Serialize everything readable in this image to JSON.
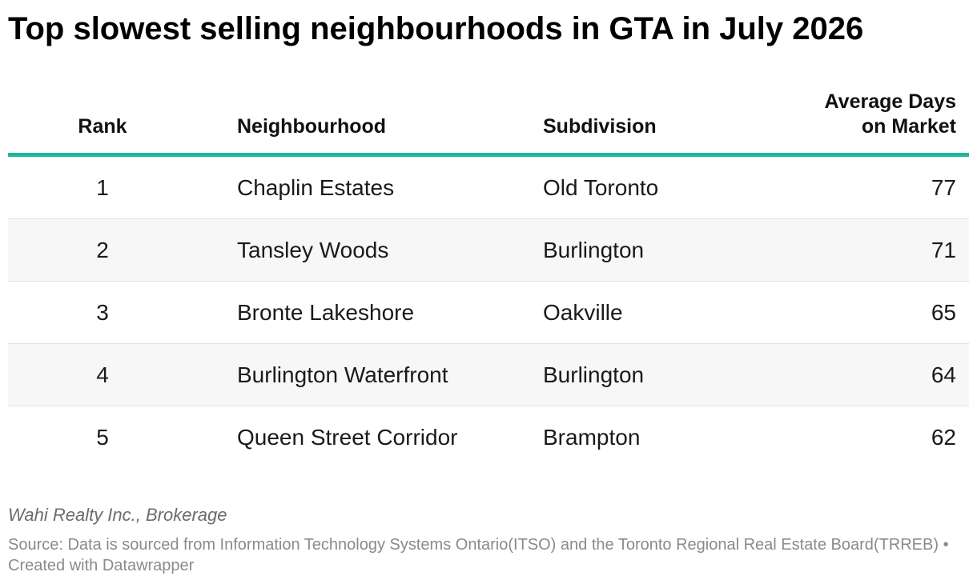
{
  "chart_data": {
    "type": "table",
    "title": "Top slowest selling neighbourhoods in GTA in July 2026",
    "columns": {
      "rank": "Rank",
      "neighbourhood": "Neighbourhood",
      "subdivision": "Subdivision",
      "days_line1": "Average Days",
      "days_line2": "on Market"
    },
    "rows": [
      {
        "rank": "1",
        "neighbourhood": "Chaplin Estates",
        "subdivision": "Old Toronto",
        "days": "77"
      },
      {
        "rank": "2",
        "neighbourhood": "Tansley Woods",
        "subdivision": "Burlington",
        "days": "71"
      },
      {
        "rank": "3",
        "neighbourhood": "Bronte Lakeshore",
        "subdivision": "Oakville",
        "days": "65"
      },
      {
        "rank": "4",
        "neighbourhood": "Burlington Waterfront",
        "subdivision": "Burlington",
        "days": "64"
      },
      {
        "rank": "5",
        "neighbourhood": "Queen Street Corridor",
        "subdivision": "Brampton",
        "days": "62"
      }
    ],
    "notes": "Wahi Realty Inc., Brokerage",
    "source": "Source: Data is sourced from Information Technology Systems Ontario(ITSO) and the Toronto Regional Real Estate Board(TRREB) • Created with Datawrapper"
  },
  "colors": {
    "header_rule": "#1fb79a",
    "alt_row": "#f7f7f7"
  }
}
